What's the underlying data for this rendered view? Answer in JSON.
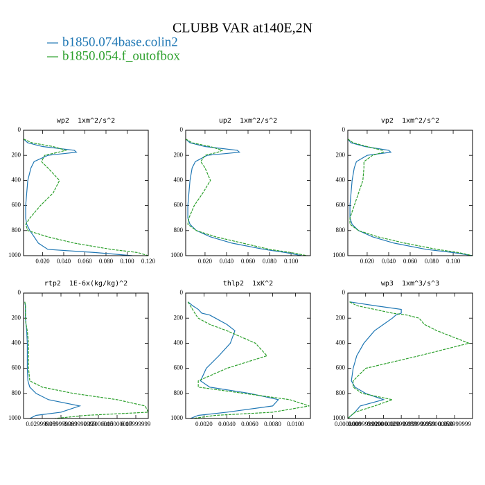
{
  "title": "CLUBB VAR at140E,2N",
  "chart_data": [
    {
      "type": "line",
      "title": "wp2  1xm^2/s^2",
      "y": [
        70,
        100,
        130,
        160,
        175,
        200,
        250,
        300,
        400,
        500,
        600,
        700,
        750,
        800,
        850,
        900,
        950,
        975,
        1000
      ],
      "series": [
        {
          "name": "b1850.074base.colin2",
          "color": "#1f77b4",
          "values": [
            0.002,
            0.006,
            0.02,
            0.05,
            0.052,
            0.025,
            0.012,
            0.009,
            0.006,
            0.005,
            0.004,
            0.004,
            0.005,
            0.008,
            0.012,
            0.016,
            0.025,
            0.07,
            0.105
          ]
        },
        {
          "name": "b1850.054.f_outofbox",
          "color": "#2ca02c",
          "dash": true,
          "values": [
            0.002,
            0.01,
            0.03,
            0.042,
            0.035,
            0.022,
            0.019,
            0.025,
            0.036,
            0.03,
            0.018,
            0.008,
            0.004,
            0.006,
            0.025,
            0.05,
            0.085,
            0.11,
            0.12
          ]
        }
      ],
      "xlim": [
        0.002,
        0.12
      ],
      "xticks": [
        {
          "value": 0.02,
          "label": "0.020"
        },
        {
          "value": 0.04,
          "label": "0.040"
        },
        {
          "value": 0.06,
          "label": "0.060"
        },
        {
          "value": 0.08,
          "label": "0.080"
        },
        {
          "value": 0.1,
          "label": "0.100"
        },
        {
          "value": 0.12,
          "label": "0.120"
        }
      ],
      "ylim": [
        1000,
        0
      ],
      "yticks": [
        0,
        200,
        400,
        600,
        800,
        1000
      ]
    },
    {
      "type": "line",
      "title": "up2  1xm^2/s^2",
      "y": [
        70,
        100,
        130,
        160,
        175,
        200,
        250,
        300,
        400,
        500,
        600,
        700,
        750,
        800,
        850,
        900,
        950,
        975,
        1000
      ],
      "series": [
        {
          "name": "b1850.074base.colin2",
          "color": "#1f77b4",
          "values": [
            0.002,
            0.006,
            0.02,
            0.05,
            0.052,
            0.022,
            0.011,
            0.008,
            0.006,
            0.005,
            0.004,
            0.004,
            0.006,
            0.012,
            0.025,
            0.045,
            0.075,
            0.095,
            0.11
          ]
        },
        {
          "name": "b1850.054.f_outofbox",
          "color": "#2ca02c",
          "dash": true,
          "values": [
            0.002,
            0.008,
            0.025,
            0.036,
            0.032,
            0.02,
            0.016,
            0.02,
            0.025,
            0.018,
            0.01,
            0.005,
            0.004,
            0.012,
            0.03,
            0.055,
            0.08,
            0.1,
            0.115
          ]
        }
      ],
      "xlim": [
        0.002,
        0.118
      ],
      "xticks": [
        {
          "value": 0.02,
          "label": "0.020"
        },
        {
          "value": 0.04,
          "label": "0.040"
        },
        {
          "value": 0.06,
          "label": "0.060"
        },
        {
          "value": 0.08,
          "label": "0.080"
        },
        {
          "value": 0.1,
          "label": "0.100"
        }
      ],
      "ylim": [
        1000,
        0
      ],
      "yticks": [
        0,
        200,
        400,
        600,
        800,
        1000
      ]
    },
    {
      "type": "line",
      "title": "vp2  1xm^2/s^2",
      "y": [
        70,
        100,
        130,
        160,
        175,
        200,
        250,
        300,
        400,
        500,
        600,
        700,
        750,
        800,
        850,
        900,
        950,
        975,
        1000
      ],
      "series": [
        {
          "name": "b1850.074base.colin2",
          "color": "#1f77b4",
          "values": [
            0.002,
            0.005,
            0.018,
            0.04,
            0.042,
            0.02,
            0.01,
            0.008,
            0.006,
            0.005,
            0.004,
            0.004,
            0.006,
            0.012,
            0.025,
            0.045,
            0.075,
            0.1,
            0.118
          ]
        },
        {
          "name": "b1850.054.f_outofbox",
          "color": "#2ca02c",
          "dash": true,
          "values": [
            0.002,
            0.007,
            0.02,
            0.034,
            0.035,
            0.025,
            0.017,
            0.017,
            0.016,
            0.012,
            0.008,
            0.004,
            0.004,
            0.012,
            0.03,
            0.055,
            0.085,
            0.105,
            0.118
          ]
        }
      ],
      "xlim": [
        0.002,
        0.118
      ],
      "xticks": [
        {
          "value": 0.02,
          "label": "0.020"
        },
        {
          "value": 0.04,
          "label": "0.040"
        },
        {
          "value": 0.06,
          "label": "0.060"
        },
        {
          "value": 0.08,
          "label": "0.080"
        },
        {
          "value": 0.1,
          "label": "0.100"
        }
      ],
      "ylim": [
        1000,
        0
      ],
      "yticks": [
        0,
        200,
        400,
        600,
        800,
        1000
      ]
    },
    {
      "type": "line",
      "title": "rtp2  1E-6x(kg/kg)^2",
      "y": [
        70,
        100,
        130,
        160,
        175,
        200,
        250,
        300,
        400,
        500,
        600,
        700,
        750,
        800,
        850,
        900,
        950,
        975,
        1000
      ],
      "series": [
        {
          "name": "b1850.074base.colin2",
          "color": "#1f77b4",
          "values": [
            0.002,
            0.003,
            0.003,
            0.003,
            0.003,
            0.003,
            0.004,
            0.005,
            0.006,
            0.006,
            0.006,
            0.007,
            0.01,
            0.02,
            0.04,
            0.09,
            0.06,
            0.02,
            0.01
          ]
        },
        {
          "name": "b1850.054.f_outofbox",
          "color": "#2ca02c",
          "dash": true,
          "values": [
            0.002,
            0.003,
            0.003,
            0.003,
            0.003,
            0.003,
            0.004,
            0.006,
            0.008,
            0.008,
            0.008,
            0.01,
            0.03,
            0.08,
            0.15,
            0.195,
            0.2,
            0.1,
            0.05
          ]
        }
      ],
      "xlim": [
        0,
        0.2
      ],
      "xticks": [
        {
          "value": 0.03,
          "label": "0.029999999"
        },
        {
          "value": 0.06,
          "label": "0.059999999"
        },
        {
          "value": 0.09,
          "label": "0.089999999"
        },
        {
          "value": 0.12,
          "label": "0.12000000"
        },
        {
          "value": 0.15,
          "label": "0.15000000"
        },
        {
          "value": 0.18,
          "label": "0.17999999"
        }
      ],
      "ylim": [
        1000,
        0
      ],
      "yticks": [
        0,
        200,
        400,
        600,
        800,
        1000
      ]
    },
    {
      "type": "line",
      "title": "thlp2  1xK^2",
      "y": [
        70,
        100,
        130,
        160,
        175,
        200,
        250,
        300,
        400,
        500,
        600,
        700,
        750,
        800,
        850,
        900,
        950,
        975,
        1000
      ],
      "series": [
        {
          "name": "b1850.074base.colin2",
          "color": "#1f77b4",
          "values": [
            0.0006,
            0.001,
            0.0015,
            0.0018,
            0.0025,
            0.003,
            0.004,
            0.0047,
            0.0043,
            0.0033,
            0.0022,
            0.0017,
            0.0025,
            0.006,
            0.0085,
            0.008,
            0.004,
            0.0015,
            0.0008
          ]
        },
        {
          "name": "b1850.054.f_outofbox",
          "color": "#2ca02c",
          "dash": true,
          "values": [
            0.0006,
            0.0008,
            0.001,
            0.0012,
            0.0013,
            0.0015,
            0.0025,
            0.004,
            0.0065,
            0.0075,
            0.004,
            0.0015,
            0.0015,
            0.0055,
            0.0095,
            0.0112,
            0.008,
            0.003,
            0.001
          ]
        }
      ],
      "xlim": [
        0.0004,
        0.0113
      ],
      "xticks": [
        {
          "value": 0.002,
          "label": "0.0020"
        },
        {
          "value": 0.004,
          "label": "0.0040"
        },
        {
          "value": 0.006,
          "label": "0.0060"
        },
        {
          "value": 0.008,
          "label": "0.0080"
        },
        {
          "value": 0.01,
          "label": "0.0100"
        }
      ],
      "ylim": [
        1000,
        0
      ],
      "yticks": [
        0,
        200,
        400,
        600,
        800,
        1000
      ]
    },
    {
      "type": "line",
      "title": "wp3  1xm^3/s^3",
      "y": [
        70,
        100,
        130,
        160,
        175,
        200,
        250,
        300,
        400,
        500,
        600,
        700,
        750,
        800,
        850,
        900,
        950,
        975,
        1000
      ],
      "series": [
        {
          "name": "b1850.074base.colin2",
          "color": "#1f77b4",
          "values": [
            0.001,
            0.015,
            0.03,
            0.03,
            0.027,
            0.025,
            0.02,
            0.015,
            0.009,
            0.005,
            0.003,
            0.002,
            0.004,
            0.01,
            0.02,
            0.007,
            0.004,
            0.002,
            0
          ]
        },
        {
          "name": "b1850.054.f_outofbox",
          "color": "#2ca02c",
          "dash": true,
          "values": [
            0.001,
            0.005,
            0.015,
            0.025,
            0.033,
            0.04,
            0.043,
            0.05,
            0.068,
            0.04,
            0.01,
            0.003,
            0.003,
            0.008,
            0.025,
            0.015,
            0.004,
            0.002,
            0
          ]
        }
      ],
      "xlim": [
        0,
        0.07
      ],
      "xticks": [
        {
          "value": 0,
          "label": "0.0000000"
        },
        {
          "value": 0.01,
          "label": "0.0099999990"
        },
        {
          "value": 0.02,
          "label": "0.020000000"
        },
        {
          "value": 0.03,
          "label": "0.029999999"
        },
        {
          "value": 0.04,
          "label": "0.039999999"
        },
        {
          "value": 0.05,
          "label": "0.050000000"
        },
        {
          "value": 0.06,
          "label": "0.059999999"
        }
      ],
      "ylim": [
        1000,
        0
      ],
      "yticks": [
        0,
        200,
        400,
        600,
        800,
        1000
      ]
    }
  ]
}
